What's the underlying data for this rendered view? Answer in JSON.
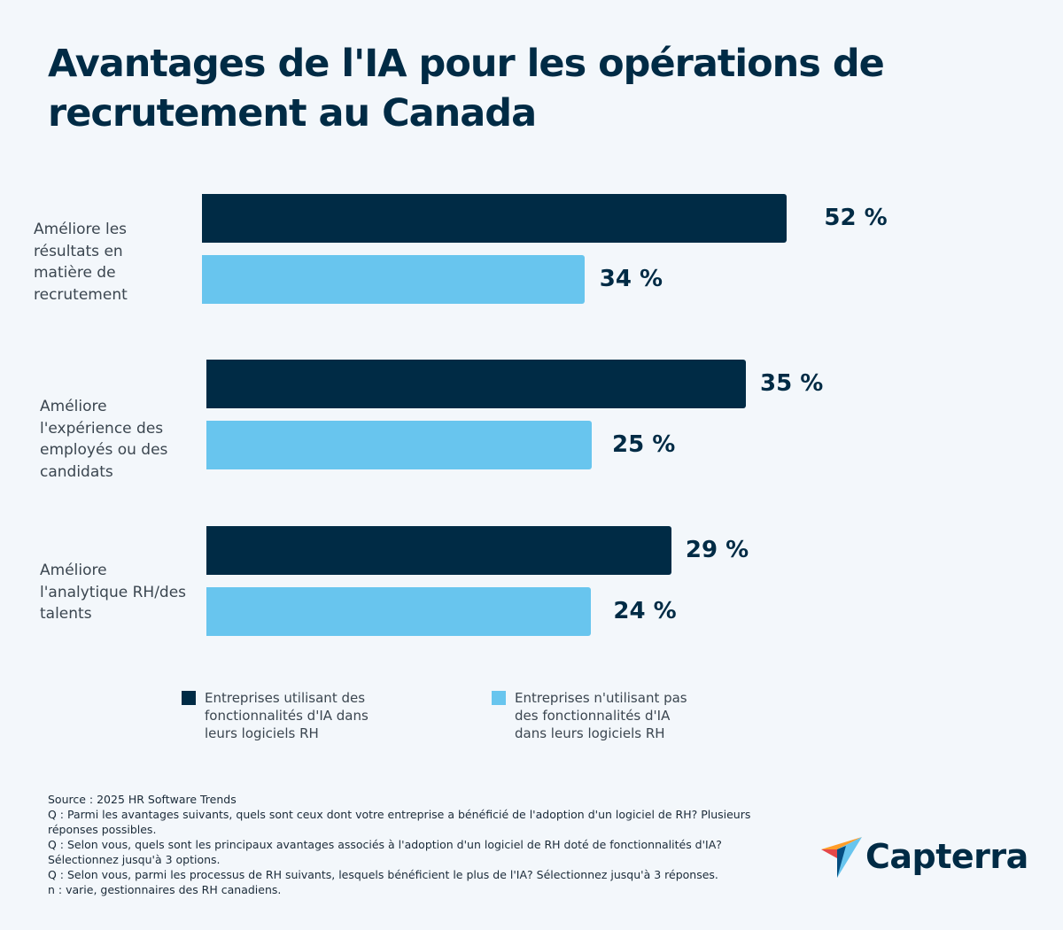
{
  "chart_data": {
    "type": "bar",
    "orientation": "horizontal",
    "title": "Avantages de l'IA pour les opérations de recrutement au Canada",
    "categories": [
      "Améliore les résultats en matière de recrutement",
      "Améliore l'expérience des employés ou des candidats",
      "Améliore l'analytique RH/des talents"
    ],
    "series": [
      {
        "name": "Entreprises utilisant des fonctionnalités d'IA dans leurs logiciels RH",
        "values": [
          52,
          35,
          29
        ],
        "labels": [
          "52 %",
          "35 %",
          "29 %"
        ],
        "color": "#002b45"
      },
      {
        "name": "Entreprises n'utilisant pas des fonctionnalités d'IA dans leurs logiciels RH",
        "values": [
          34,
          25,
          24
        ],
        "labels": [
          "34 %",
          "25 %",
          "24 %"
        ],
        "color": "#68c5ee"
      }
    ],
    "legend_placement": "bottom",
    "grid": false
  },
  "footer": {
    "lines": [
      "Source : 2025 HR Software Trends",
      "Q : Parmi les avantages suivants, quels sont ceux dont votre entreprise a bénéficié de l'adoption d'un logiciel de RH? Plusieurs réponses possibles.",
      "Q : Selon vous, quels sont les principaux avantages associés à l'adoption d'un logiciel de RH doté de fonctionnalités d'IA? Sélectionnez jusqu'à 3 options.",
      "Q : Selon vous, parmi les processus de RH suivants, lesquels bénéficient le plus de l'IA? Sélectionnez jusqu'à 3 réponses.",
      "n :  varie, gestionnaires des RH canadiens."
    ]
  },
  "logo": {
    "text": "Capterra"
  }
}
